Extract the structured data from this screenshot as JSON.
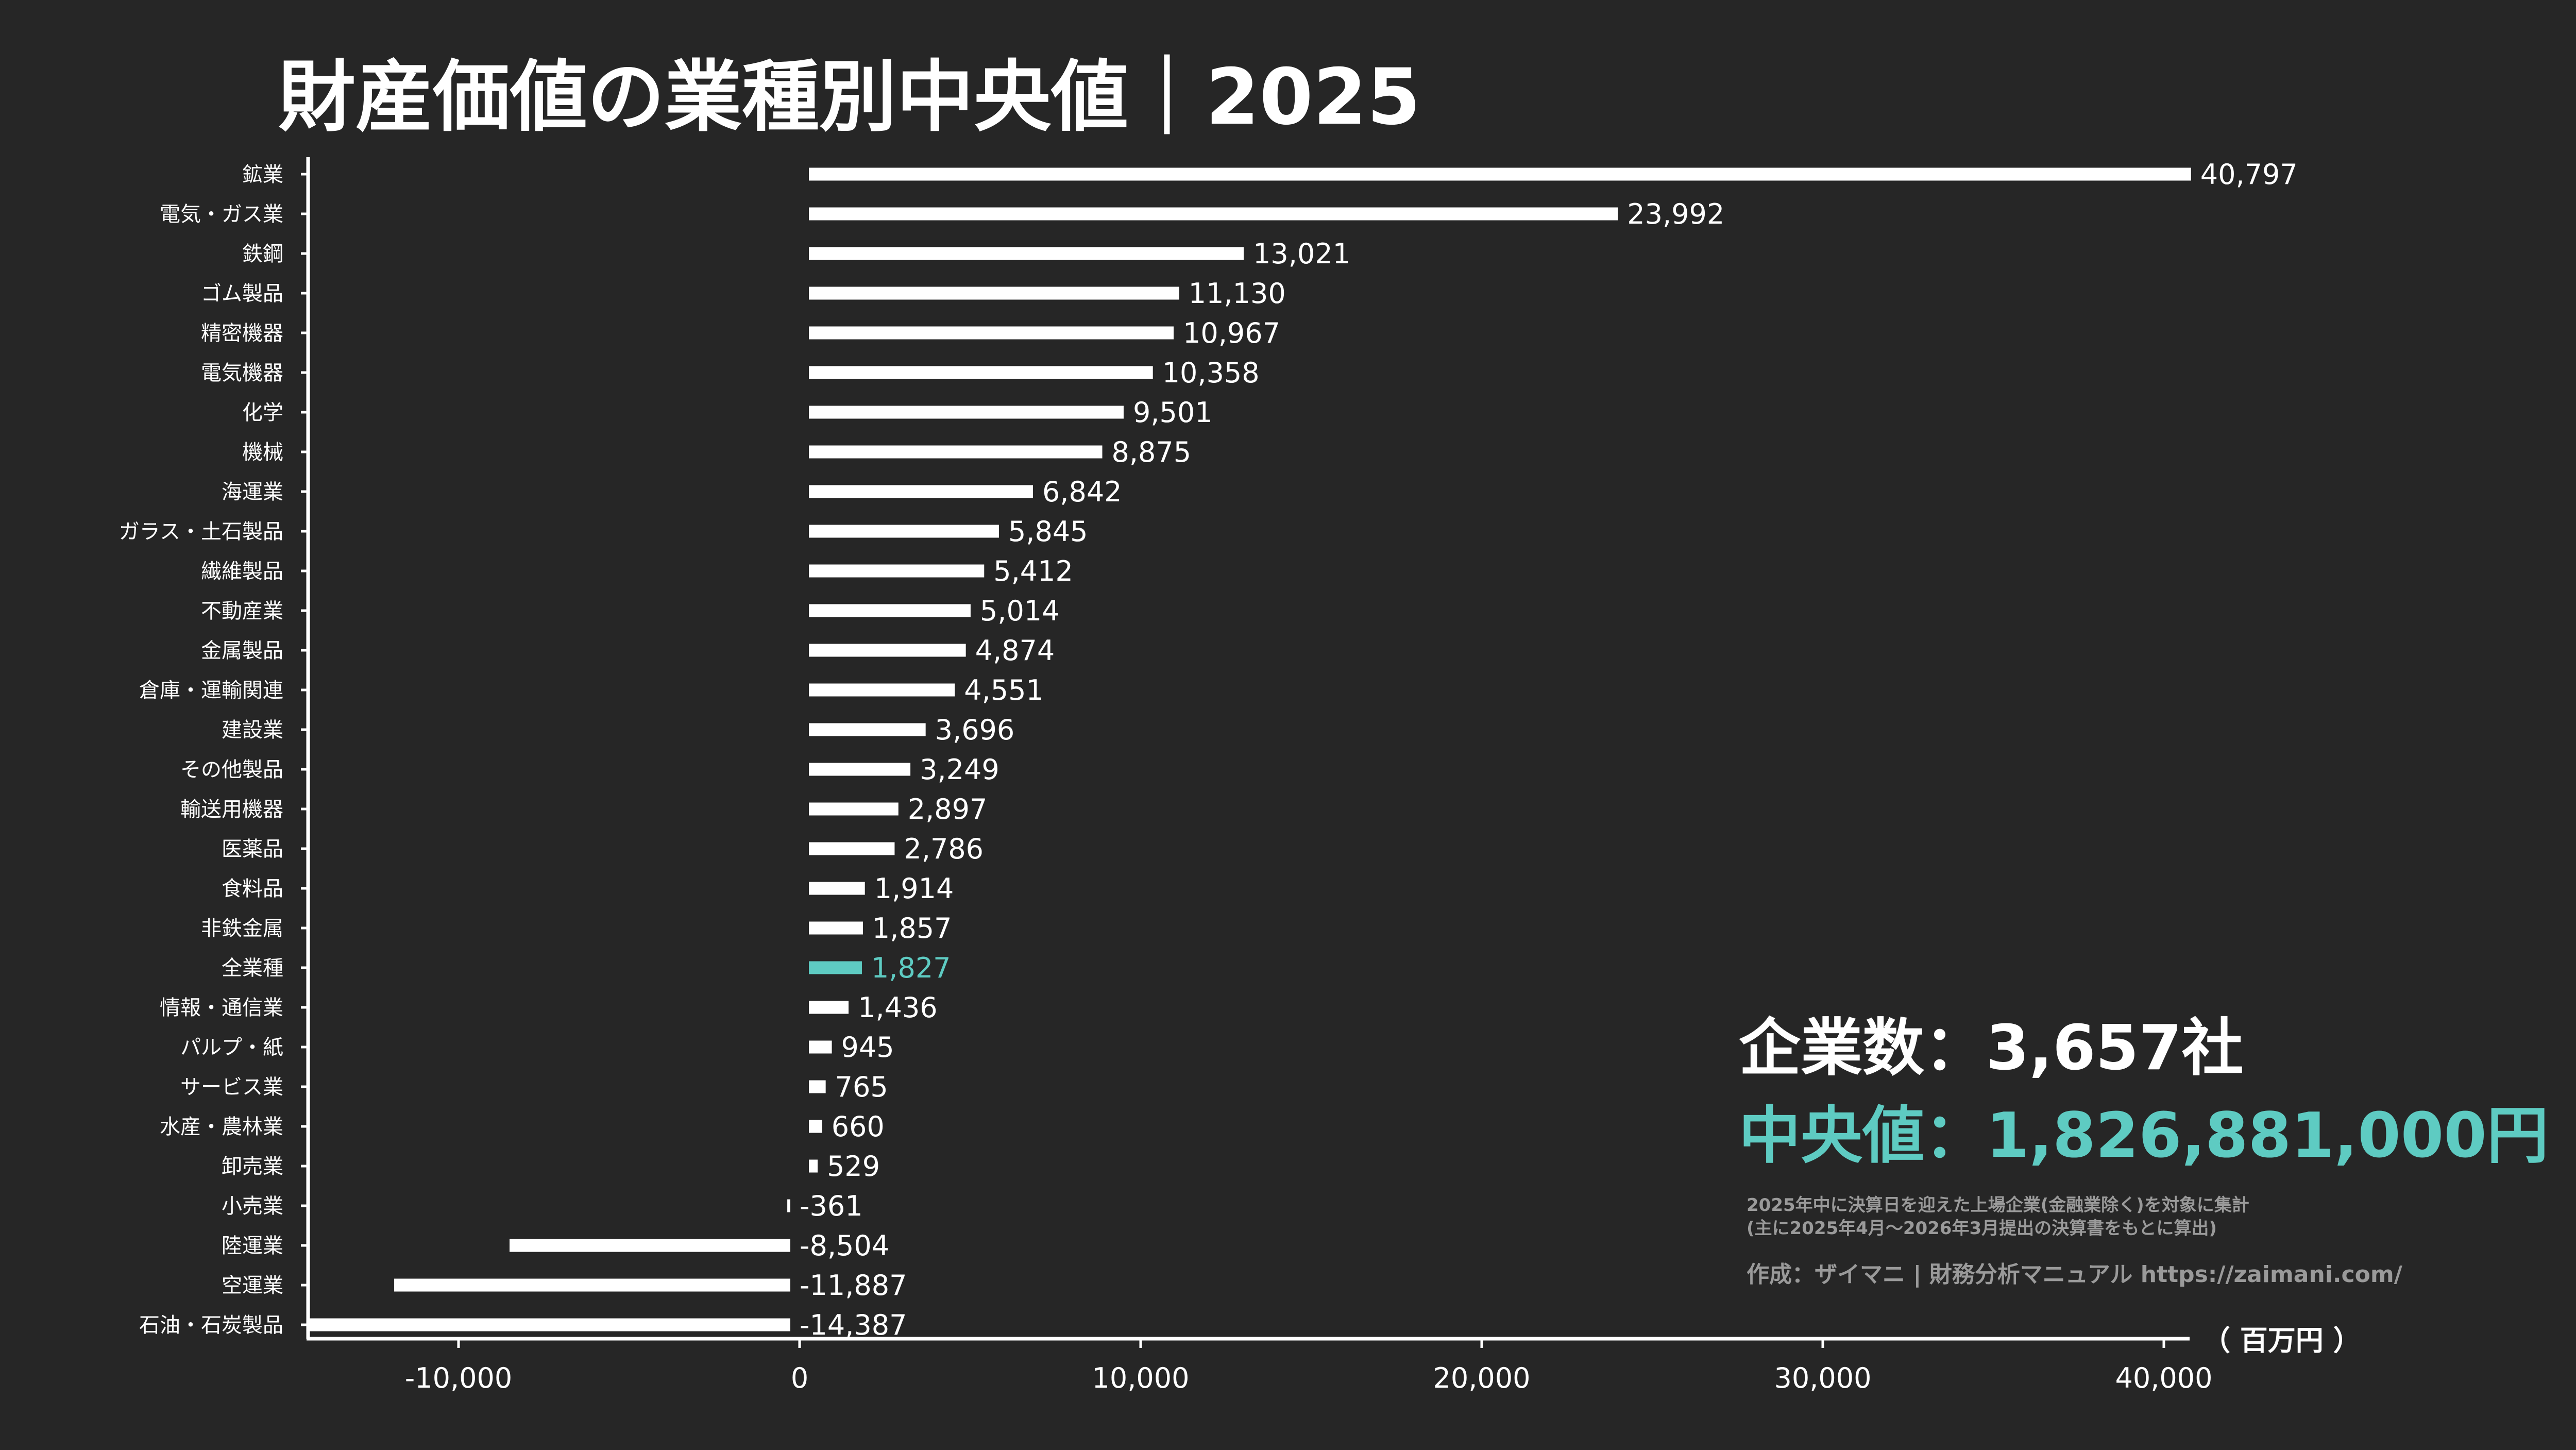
{
  "colors": {
    "background": "#262626",
    "bar": "#ffffff",
    "highlight": "#5ecbc2",
    "note": "#9a9a9a"
  },
  "chart_data": {
    "type": "bar",
    "orientation": "horizontal",
    "title": "財産価値の業種別中央値｜2025",
    "unit_label": "（ 百万円 ）",
    "highlight_category": "全業種",
    "categories": [
      "鉱業",
      "電気・ガス業",
      "鉄鋼",
      "ゴム製品",
      "精密機器",
      "電気機器",
      "化学",
      "機械",
      "海運業",
      "ガラス・土石製品",
      "繊維製品",
      "不動産業",
      "金属製品",
      "倉庫・運輸関連",
      "建設業",
      "その他製品",
      "輸送用機器",
      "医薬品",
      "食料品",
      "非鉄金属",
      "全業種",
      "情報・通信業",
      "パルプ・紙",
      "サービス業",
      "水産・農林業",
      "卸売業",
      "小売業",
      "陸運業",
      "空運業",
      "石油・石炭製品"
    ],
    "values": [
      40797,
      23992,
      13021,
      11130,
      10967,
      10358,
      9501,
      8875,
      6842,
      5845,
      5412,
      5014,
      4874,
      4551,
      3696,
      3249,
      2897,
      2786,
      1914,
      1857,
      1827,
      1436,
      945,
      765,
      660,
      529,
      -361,
      -8504,
      -11887,
      -14387
    ],
    "value_labels": [
      "40,797",
      "23,992",
      "13,021",
      "11,130",
      "10,967",
      "10,358",
      "9,501",
      "8,875",
      "6,842",
      "5,845",
      "5,412",
      "5,014",
      "4,874",
      "4,551",
      "3,696",
      "3,249",
      "2,897",
      "2,786",
      "1,914",
      "1,857",
      "1,827",
      "1,436",
      "945",
      "765",
      "660",
      "529",
      "-361",
      "-8,504",
      "-11,887",
      "-14,387"
    ],
    "xlim": [
      -14800,
      40800
    ],
    "xticks": [
      -10000,
      0,
      10000,
      20000,
      30000,
      40000
    ],
    "xtick_labels": [
      "-10,000",
      "0",
      "10,000",
      "20,000",
      "30,000",
      "40,000"
    ],
    "grid": false,
    "legend": "none"
  },
  "summary": {
    "company_count": "企業数：3,657社",
    "median": "中央値：1,826,881,000円",
    "note_line1": "2025年中に決算日を迎えた上場企業(金融業除く)を対象に集計",
    "note_line2": "(主に2025年4月〜2026年3月提出の決算書をもとに算出)",
    "credit": "作成：ザイマニ | 財務分析マニュアル https://zaimani.com/"
  }
}
